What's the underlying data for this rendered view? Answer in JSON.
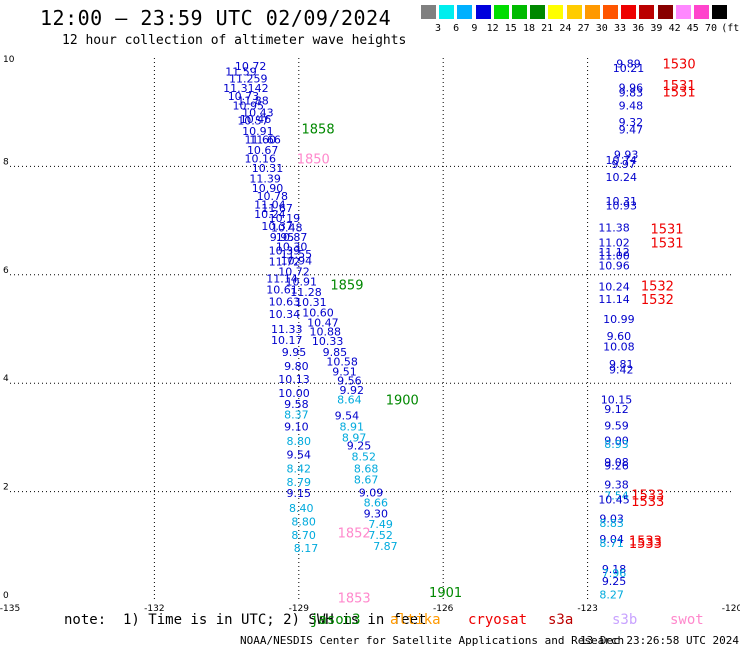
{
  "header": {
    "title": "12:00 — 23:59 UTC 02/09/2024",
    "subtitle": "12 hour collection of altimeter wave heights"
  },
  "color_legend": {
    "labels": [
      "3",
      "6",
      "9",
      "12",
      "15",
      "18",
      "21",
      "24",
      "27",
      "30",
      "33",
      "36",
      "39",
      "42",
      "45",
      "70",
      "(ft)"
    ],
    "colors": [
      "#808080",
      "#00eeee",
      "#00b0ff",
      "#0000dd",
      "#00dd00",
      "#00bb00",
      "#008800",
      "#ffff00",
      "#ffcc00",
      "#ff9900",
      "#ff5500",
      "#ee0000",
      "#bb0000",
      "#880000",
      "#ff88ff",
      "#ff44cc",
      "#000000"
    ]
  },
  "footer": {
    "note": "note:  1) Time is in UTC; 2) SWH is in feet",
    "satellites": [
      {
        "name": "jason3",
        "color": "#008800"
      },
      {
        "name": "altika",
        "color": "#ff9900"
      },
      {
        "name": "cryosat",
        "color": "#ee0000"
      },
      {
        "name": "s3a",
        "color": "#bb0000"
      },
      {
        "name": "s3b",
        "color": "#c8a2ff"
      },
      {
        "name": "swot",
        "color": "#ff88cc"
      }
    ],
    "credit": "NOAA/NESDIS Center for Satellite Applications and Research",
    "timestamp": "13 Dec 23:26:58 UTC 2024"
  },
  "chart_data": {
    "type": "scatter",
    "title": "12:00 — 23:59 UTC 02/09/2024",
    "subtitle": "12 hour collection of altimeter wave heights",
    "x_ticks": [
      "-135",
      "-132",
      "-129",
      "-126",
      "-123",
      "-120"
    ],
    "y_ticks": [
      "0",
      "2",
      "4",
      "6",
      "8",
      "10"
    ],
    "xlim": [
      -135,
      -120
    ],
    "ylim": [
      0,
      10
    ],
    "grid": true,
    "point_colors": {
      "dark_blue": "#0000cc",
      "light_blue": "#00aadd",
      "pink": "#ff88cc",
      "green": "#008800",
      "red": "#ee0000"
    },
    "points": [
      {
        "lon": -130.0,
        "lat": 9.85,
        "text": "10.72",
        "c": "dark_blue"
      },
      {
        "lon": -130.2,
        "lat": 9.75,
        "text": "11.59",
        "c": "dark_blue"
      },
      {
        "lon": -130.05,
        "lat": 9.62,
        "text": "11.259",
        "c": "dark_blue"
      },
      {
        "lon": -130.1,
        "lat": 9.45,
        "text": "11.3142",
        "c": "dark_blue"
      },
      {
        "lon": -130.15,
        "lat": 9.3,
        "text": "10.73",
        "c": "dark_blue"
      },
      {
        "lon": -129.95,
        "lat": 9.22,
        "text": "11.88",
        "c": "dark_blue"
      },
      {
        "lon": -130.05,
        "lat": 9.12,
        "text": "10.95",
        "c": "dark_blue"
      },
      {
        "lon": -129.85,
        "lat": 8.99,
        "text": "10.43",
        "c": "dark_blue"
      },
      {
        "lon": -129.9,
        "lat": 8.87,
        "text": "10.46",
        "c": "dark_blue"
      },
      {
        "lon": -129.95,
        "lat": 8.85,
        "text": "10.57",
        "c": "dark_blue"
      },
      {
        "lon": -129.85,
        "lat": 8.65,
        "text": "10.91",
        "c": "dark_blue"
      },
      {
        "lon": -129.8,
        "lat": 8.5,
        "text": "11.60",
        "c": "dark_blue"
      },
      {
        "lon": -129.7,
        "lat": 8.5,
        "text": "11.66",
        "c": "dark_blue"
      },
      {
        "lon": -129.75,
        "lat": 8.3,
        "text": "10.67",
        "c": "dark_blue"
      },
      {
        "lon": -129.8,
        "lat": 8.15,
        "text": "10.16",
        "c": "dark_blue"
      },
      {
        "lon": -129.65,
        "lat": 7.97,
        "text": "10.31",
        "c": "dark_blue"
      },
      {
        "lon": -129.7,
        "lat": 7.78,
        "text": "11.39",
        "c": "dark_blue"
      },
      {
        "lon": -129.65,
        "lat": 7.6,
        "text": "10.90",
        "c": "dark_blue"
      },
      {
        "lon": -129.55,
        "lat": 7.45,
        "text": "10.78",
        "c": "dark_blue"
      },
      {
        "lon": -129.6,
        "lat": 7.3,
        "text": "11.04",
        "c": "dark_blue"
      },
      {
        "lon": -129.45,
        "lat": 7.23,
        "text": "11.67",
        "c": "dark_blue"
      },
      {
        "lon": -129.6,
        "lat": 7.12,
        "text": "10.24",
        "c": "dark_blue"
      },
      {
        "lon": -129.3,
        "lat": 7.05,
        "text": "10.19",
        "c": "dark_blue"
      },
      {
        "lon": -129.45,
        "lat": 6.9,
        "text": "10.37",
        "c": "dark_blue"
      },
      {
        "lon": -129.25,
        "lat": 6.87,
        "text": "10.48",
        "c": "dark_blue"
      },
      {
        "lon": -129.35,
        "lat": 6.7,
        "text": "9.95",
        "c": "dark_blue"
      },
      {
        "lon": -129.15,
        "lat": 6.7,
        "text": "10.87",
        "c": "dark_blue"
      },
      {
        "lon": -129.15,
        "lat": 6.52,
        "text": "10.30",
        "c": "dark_blue"
      },
      {
        "lon": -129.3,
        "lat": 6.45,
        "text": "10.39",
        "c": "dark_blue"
      },
      {
        "lon": -129.05,
        "lat": 6.38,
        "text": "11.55",
        "c": "dark_blue"
      },
      {
        "lon": -129.3,
        "lat": 6.25,
        "text": "11.72",
        "c": "dark_blue"
      },
      {
        "lon": -129.05,
        "lat": 6.26,
        "text": "10.94",
        "c": "dark_blue"
      },
      {
        "lon": -129.1,
        "lat": 6.06,
        "text": "10.72",
        "c": "dark_blue"
      },
      {
        "lon": -129.35,
        "lat": 5.93,
        "text": "11.14",
        "c": "dark_blue"
      },
      {
        "lon": -128.95,
        "lat": 5.88,
        "text": "10.91",
        "c": "dark_blue"
      },
      {
        "lon": -129.35,
        "lat": 5.73,
        "text": "10.61",
        "c": "dark_blue"
      },
      {
        "lon": -128.85,
        "lat": 5.68,
        "text": "11.28",
        "c": "dark_blue"
      },
      {
        "lon": -129.3,
        "lat": 5.51,
        "text": "10.63",
        "c": "dark_blue"
      },
      {
        "lon": -128.75,
        "lat": 5.5,
        "text": "10.31",
        "c": "dark_blue"
      },
      {
        "lon": -128.6,
        "lat": 5.3,
        "text": "10.60",
        "c": "dark_blue"
      },
      {
        "lon": -129.3,
        "lat": 5.28,
        "text": "10.34",
        "c": "dark_blue"
      },
      {
        "lon": -128.5,
        "lat": 5.12,
        "text": "10.47",
        "c": "dark_blue"
      },
      {
        "lon": -129.25,
        "lat": 5.0,
        "text": "11.33",
        "c": "dark_blue"
      },
      {
        "lon": -128.45,
        "lat": 4.95,
        "text": "10.88",
        "c": "dark_blue"
      },
      {
        "lon": -129.25,
        "lat": 4.8,
        "text": "10.17",
        "c": "dark_blue"
      },
      {
        "lon": -128.4,
        "lat": 4.78,
        "text": "10.33",
        "c": "dark_blue"
      },
      {
        "lon": -129.1,
        "lat": 4.58,
        "text": "9.95",
        "c": "dark_blue"
      },
      {
        "lon": -128.25,
        "lat": 4.58,
        "text": "9.85",
        "c": "dark_blue"
      },
      {
        "lon": -128.1,
        "lat": 4.4,
        "text": "10.58",
        "c": "dark_blue"
      },
      {
        "lon": -129.05,
        "lat": 4.32,
        "text": "9.80",
        "c": "dark_blue"
      },
      {
        "lon": -128.05,
        "lat": 4.22,
        "text": "9.51",
        "c": "dark_blue"
      },
      {
        "lon": -129.1,
        "lat": 4.08,
        "text": "10.13",
        "c": "dark_blue"
      },
      {
        "lon": -127.95,
        "lat": 4.05,
        "text": "9.56",
        "c": "dark_blue"
      },
      {
        "lon": -129.1,
        "lat": 3.82,
        "text": "10.00",
        "c": "dark_blue"
      },
      {
        "lon": -127.9,
        "lat": 3.87,
        "text": "9.92",
        "c": "dark_blue"
      },
      {
        "lon": -127.95,
        "lat": 3.7,
        "text": "8.64",
        "c": "light_blue"
      },
      {
        "lon": -129.05,
        "lat": 3.62,
        "text": "9.58",
        "c": "dark_blue"
      },
      {
        "lon": -129.05,
        "lat": 3.42,
        "text": "8.37",
        "c": "light_blue"
      },
      {
        "lon": -128.0,
        "lat": 3.4,
        "text": "9.54",
        "c": "dark_blue"
      },
      {
        "lon": -129.05,
        "lat": 3.2,
        "text": "9.10",
        "c": "dark_blue"
      },
      {
        "lon": -127.9,
        "lat": 3.2,
        "text": "8.91",
        "c": "light_blue"
      },
      {
        "lon": -127.85,
        "lat": 3.0,
        "text": "8.97",
        "c": "light_blue"
      },
      {
        "lon": -129.0,
        "lat": 2.93,
        "text": "8.80",
        "c": "light_blue"
      },
      {
        "lon": -127.75,
        "lat": 2.85,
        "text": "9.25",
        "c": "dark_blue"
      },
      {
        "lon": -129.0,
        "lat": 2.68,
        "text": "9.54",
        "c": "dark_blue"
      },
      {
        "lon": -127.65,
        "lat": 2.65,
        "text": "8.52",
        "c": "light_blue"
      },
      {
        "lon": -129.0,
        "lat": 2.43,
        "text": "8.42",
        "c": "light_blue"
      },
      {
        "lon": -127.6,
        "lat": 2.43,
        "text": "8.68",
        "c": "light_blue"
      },
      {
        "lon": -129.0,
        "lat": 2.18,
        "text": "8.79",
        "c": "light_blue"
      },
      {
        "lon": -127.6,
        "lat": 2.22,
        "text": "8.67",
        "c": "light_blue"
      },
      {
        "lon": -129.0,
        "lat": 1.97,
        "text": "9.15",
        "c": "dark_blue"
      },
      {
        "lon": -127.5,
        "lat": 1.98,
        "text": "9.09",
        "c": "dark_blue"
      },
      {
        "lon": -127.4,
        "lat": 1.8,
        "text": "8.66",
        "c": "light_blue"
      },
      {
        "lon": -128.95,
        "lat": 1.7,
        "text": "8.40",
        "c": "light_blue"
      },
      {
        "lon": -127.4,
        "lat": 1.6,
        "text": "9.30",
        "c": "dark_blue"
      },
      {
        "lon": -128.9,
        "lat": 1.45,
        "text": "8.80",
        "c": "light_blue"
      },
      {
        "lon": -127.3,
        "lat": 1.4,
        "text": "7.49",
        "c": "light_blue"
      },
      {
        "lon": -128.9,
        "lat": 1.2,
        "text": "8.70",
        "c": "light_blue"
      },
      {
        "lon": -127.3,
        "lat": 1.2,
        "text": "7.52",
        "c": "light_blue"
      },
      {
        "lon": -128.85,
        "lat": 0.96,
        "text": "8.17",
        "c": "light_blue"
      },
      {
        "lon": -127.2,
        "lat": 1.0,
        "text": "7.87",
        "c": "light_blue"
      },
      {
        "lon": -122.15,
        "lat": 9.9,
        "text": "9.89",
        "c": "dark_blue"
      },
      {
        "lon": -122.15,
        "lat": 9.82,
        "text": "10.21",
        "c": "dark_blue"
      },
      {
        "lon": -122.1,
        "lat": 9.46,
        "text": "9.96",
        "c": "dark_blue"
      },
      {
        "lon": -122.1,
        "lat": 9.36,
        "text": "9.83",
        "c": "dark_blue"
      },
      {
        "lon": -122.1,
        "lat": 9.12,
        "text": "9.48",
        "c": "dark_blue"
      },
      {
        "lon": -122.1,
        "lat": 8.82,
        "text": "9.32",
        "c": "dark_blue"
      },
      {
        "lon": -122.1,
        "lat": 8.68,
        "text": "9.47",
        "c": "dark_blue"
      },
      {
        "lon": -122.2,
        "lat": 8.22,
        "text": "9.93",
        "c": "dark_blue"
      },
      {
        "lon": -122.3,
        "lat": 8.12,
        "text": "10.74",
        "c": "dark_blue"
      },
      {
        "lon": -122.25,
        "lat": 8.04,
        "text": "9.97",
        "c": "dark_blue"
      },
      {
        "lon": -122.3,
        "lat": 7.8,
        "text": "10.24",
        "c": "dark_blue"
      },
      {
        "lon": -122.3,
        "lat": 7.36,
        "text": "10.31",
        "c": "dark_blue"
      },
      {
        "lon": -122.3,
        "lat": 7.28,
        "text": "10.93",
        "c": "dark_blue"
      },
      {
        "lon": -122.45,
        "lat": 6.87,
        "text": "11.38",
        "c": "dark_blue"
      },
      {
        "lon": -122.45,
        "lat": 6.6,
        "text": "11.02",
        "c": "dark_blue"
      },
      {
        "lon": -122.45,
        "lat": 6.42,
        "text": "11.12",
        "c": "dark_blue"
      },
      {
        "lon": -122.45,
        "lat": 6.36,
        "text": "11.00",
        "c": "dark_blue"
      },
      {
        "lon": -122.45,
        "lat": 6.17,
        "text": "10.96",
        "c": "dark_blue"
      },
      {
        "lon": -122.45,
        "lat": 5.78,
        "text": "10.24",
        "c": "dark_blue"
      },
      {
        "lon": -122.45,
        "lat": 5.55,
        "text": "11.14",
        "c": "dark_blue"
      },
      {
        "lon": -122.35,
        "lat": 5.18,
        "text": "10.99",
        "c": "dark_blue"
      },
      {
        "lon": -122.35,
        "lat": 4.87,
        "text": "9.60",
        "c": "dark_blue"
      },
      {
        "lon": -122.35,
        "lat": 4.68,
        "text": "10.08",
        "c": "dark_blue"
      },
      {
        "lon": -122.3,
        "lat": 4.35,
        "text": "9.81",
        "c": "dark_blue"
      },
      {
        "lon": -122.3,
        "lat": 4.25,
        "text": "9.42",
        "c": "dark_blue"
      },
      {
        "lon": -122.4,
        "lat": 3.7,
        "text": "10.15",
        "c": "dark_blue"
      },
      {
        "lon": -122.4,
        "lat": 3.52,
        "text": "9.12",
        "c": "dark_blue"
      },
      {
        "lon": -122.4,
        "lat": 3.22,
        "text": "9.59",
        "c": "dark_blue"
      },
      {
        "lon": -122.4,
        "lat": 2.94,
        "text": "9.00",
        "c": "dark_blue"
      },
      {
        "lon": -122.4,
        "lat": 2.88,
        "text": "8.93",
        "c": "light_blue"
      },
      {
        "lon": -122.4,
        "lat": 2.55,
        "text": "9.08",
        "c": "dark_blue"
      },
      {
        "lon": -122.4,
        "lat": 2.48,
        "text": "9.26",
        "c": "dark_blue"
      },
      {
        "lon": -122.4,
        "lat": 2.13,
        "text": "9.38",
        "c": "dark_blue"
      },
      {
        "lon": -122.4,
        "lat": 1.93,
        "text": "7.54",
        "c": "light_blue"
      },
      {
        "lon": -122.45,
        "lat": 1.85,
        "text": "10.45",
        "c": "dark_blue"
      },
      {
        "lon": -122.5,
        "lat": 1.5,
        "text": "9.03",
        "c": "dark_blue"
      },
      {
        "lon": -122.5,
        "lat": 1.42,
        "text": "8.83",
        "c": "light_blue"
      },
      {
        "lon": -122.5,
        "lat": 1.13,
        "text": "9.04",
        "c": "dark_blue"
      },
      {
        "lon": -122.5,
        "lat": 1.05,
        "text": "8.71",
        "c": "light_blue"
      },
      {
        "lon": -122.45,
        "lat": 0.57,
        "text": "9.18",
        "c": "dark_blue"
      },
      {
        "lon": -122.45,
        "lat": 0.5,
        "text": "7.96",
        "c": "light_blue"
      },
      {
        "lon": -122.45,
        "lat": 0.35,
        "text": "9.25",
        "c": "dark_blue"
      },
      {
        "lon": -122.5,
        "lat": 0.1,
        "text": "8.27",
        "c": "light_blue"
      }
    ],
    "time_labels": [
      {
        "lon": -128.6,
        "lat": 8.7,
        "text": "1858",
        "c": "green"
      },
      {
        "lon": -128.7,
        "lat": 8.15,
        "text": "1850",
        "c": "pink"
      },
      {
        "lon": -128.0,
        "lat": 5.82,
        "text": "1859",
        "c": "green"
      },
      {
        "lon": -126.85,
        "lat": 3.7,
        "text": "1900",
        "c": "green"
      },
      {
        "lon": -127.85,
        "lat": 1.25,
        "text": "1852",
        "c": "pink"
      },
      {
        "lon": -127.85,
        "lat": 0.05,
        "text": "1853",
        "c": "pink"
      },
      {
        "lon": -125.95,
        "lat": 0.15,
        "text": "1901",
        "c": "green"
      },
      {
        "lon": -121.1,
        "lat": 9.9,
        "text": "1530",
        "c": "red"
      },
      {
        "lon": -121.1,
        "lat": 9.5,
        "text": "1531",
        "c": "red"
      },
      {
        "lon": -121.1,
        "lat": 9.38,
        "text": "1531",
        "c": "red"
      },
      {
        "lon": -121.35,
        "lat": 6.85,
        "text": "1531",
        "c": "red"
      },
      {
        "lon": -121.35,
        "lat": 6.6,
        "text": "1531",
        "c": "red"
      },
      {
        "lon": -121.55,
        "lat": 5.8,
        "text": "1532",
        "c": "red"
      },
      {
        "lon": -121.55,
        "lat": 5.55,
        "text": "1532",
        "c": "red"
      },
      {
        "lon": -121.75,
        "lat": 1.95,
        "text": "1533",
        "c": "red"
      },
      {
        "lon": -121.75,
        "lat": 1.83,
        "text": "1533",
        "c": "red"
      },
      {
        "lon": -121.8,
        "lat": 1.1,
        "text": "1533",
        "c": "red"
      },
      {
        "lon": -121.8,
        "lat": 1.05,
        "text": "1533",
        "c": "red"
      }
    ]
  }
}
